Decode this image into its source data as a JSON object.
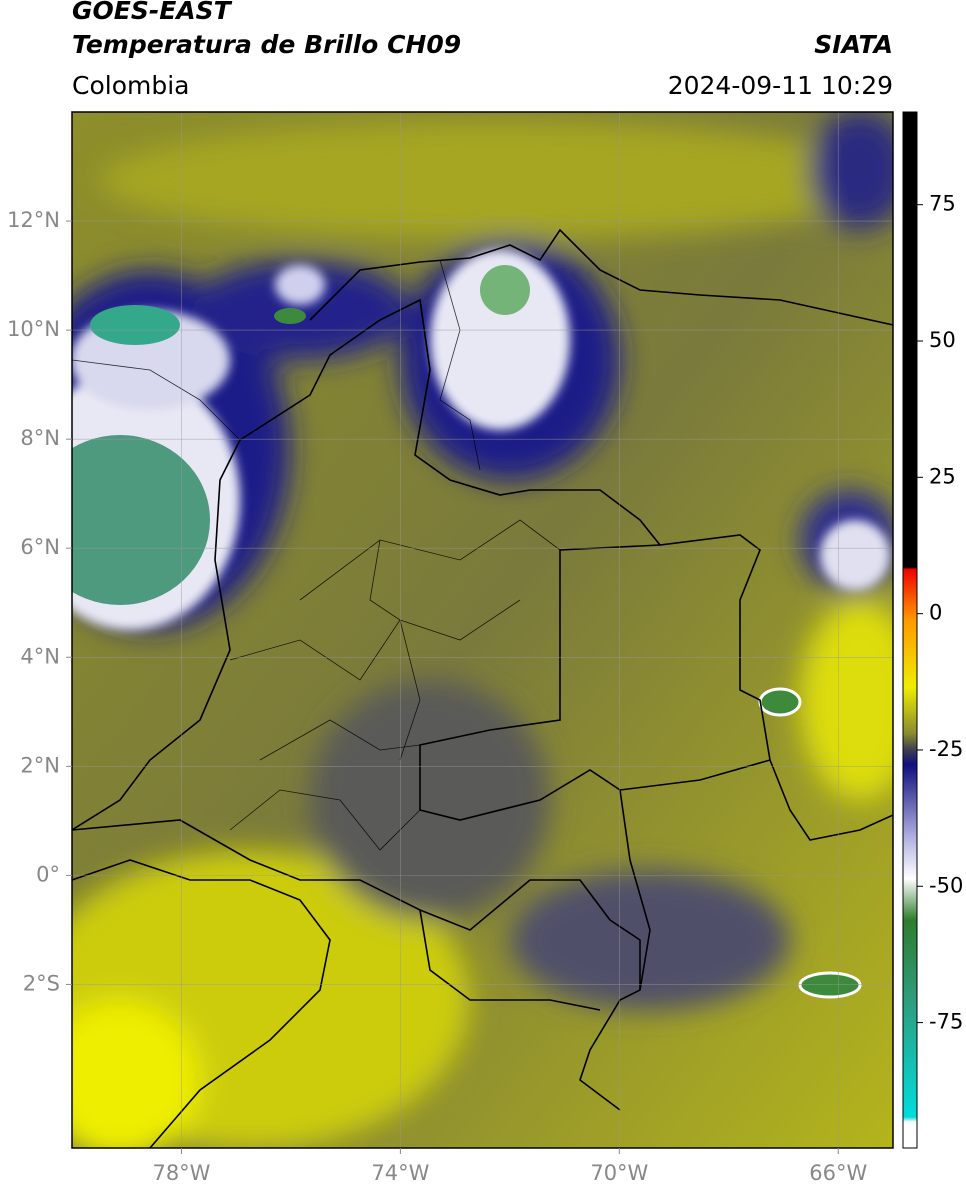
{
  "header": {
    "title": "GOES-EAST",
    "subtitle": "Temperatura de Brillo CH09",
    "source": "SIATA",
    "region": "Colombia",
    "datetime": "2024-09-11 10:29"
  },
  "map": {
    "xlim": [
      -80,
      -65
    ],
    "ylim": [
      -5,
      14
    ],
    "xticks": [
      {
        "value": -78,
        "label": "78°W"
      },
      {
        "value": -74,
        "label": "74°W"
      },
      {
        "value": -70,
        "label": "70°W"
      },
      {
        "value": -66,
        "label": "66°W"
      }
    ],
    "yticks": [
      {
        "value": 12,
        "label": "12°N"
      },
      {
        "value": 10,
        "label": "10°N"
      },
      {
        "value": 8,
        "label": "8°N"
      },
      {
        "value": 6,
        "label": "6°N"
      },
      {
        "value": 4,
        "label": "4°N"
      },
      {
        "value": 2,
        "label": "2°N"
      },
      {
        "value": 0,
        "label": "0°"
      },
      {
        "value": -2,
        "label": "2°S"
      }
    ],
    "grid": true
  },
  "colorbar": {
    "clim": [
      -98,
      92
    ],
    "ticks": [
      75,
      50,
      25,
      0,
      -25,
      -50,
      -75
    ]
  }
}
